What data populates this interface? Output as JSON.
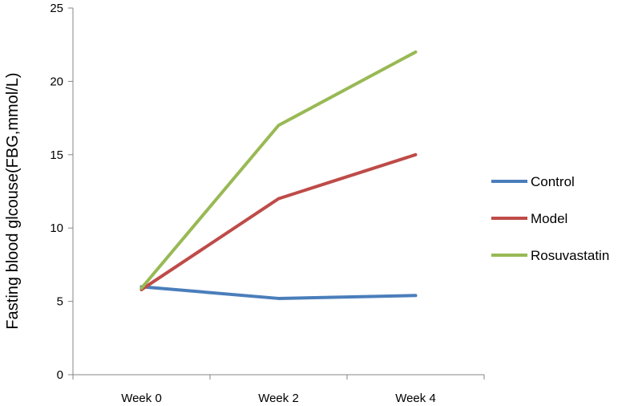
{
  "chart_data": {
    "type": "line",
    "title": "",
    "xlabel": "",
    "ylabel": "Fasting blood glcouse(FBG,mmol/L)",
    "categories": [
      "Week 0",
      "Week 2",
      "Week 4"
    ],
    "ylim": [
      0,
      25
    ],
    "yticks": [
      0,
      5,
      10,
      15,
      20,
      25
    ],
    "grid": false,
    "legend_position": "right",
    "series": [
      {
        "name": "Control",
        "color": "#4A7EBB",
        "values": [
          6.0,
          5.2,
          5.4
        ]
      },
      {
        "name": "Model",
        "color": "#BE4B48",
        "values": [
          5.8,
          12.0,
          15.0
        ]
      },
      {
        "name": "Rosuvastatin",
        "color": "#98B954",
        "values": [
          5.9,
          17.0,
          22.0
        ]
      }
    ]
  }
}
